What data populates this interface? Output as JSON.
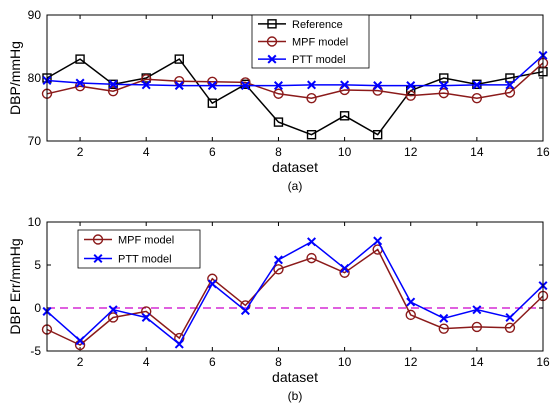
{
  "chart_data": [
    {
      "type": "line",
      "caption": "(a)",
      "xlabel": "dataset",
      "ylabel": "DBP/mmHg",
      "xlim": [
        1,
        16
      ],
      "ylim": [
        70,
        90
      ],
      "xticks": [
        2,
        4,
        6,
        8,
        10,
        12,
        14,
        16
      ],
      "yticks": [
        70,
        80,
        90
      ],
      "grid": false,
      "legend_position": "top-right",
      "x": [
        1,
        2,
        3,
        4,
        5,
        6,
        7,
        8,
        9,
        10,
        11,
        12,
        13,
        14,
        15,
        16
      ],
      "series": [
        {
          "name": "Reference",
          "color": "#000000",
          "marker": "square",
          "values": [
            80,
            83,
            79,
            80,
            83,
            76,
            79,
            73,
            71,
            74,
            71,
            78,
            80,
            79,
            80,
            81
          ]
        },
        {
          "name": "MPF model",
          "color": "#8b1a1a",
          "marker": "circle",
          "values": [
            77.5,
            78.7,
            77.9,
            79.8,
            79.5,
            79.4,
            79.3,
            77.5,
            76.8,
            78.1,
            78.0,
            77.2,
            77.6,
            76.8,
            77.7,
            82.4
          ]
        },
        {
          "name": "PTT model",
          "color": "#0000ff",
          "marker": "x",
          "values": [
            79.6,
            79.2,
            79.0,
            78.9,
            78.8,
            78.8,
            78.8,
            78.8,
            78.9,
            78.9,
            78.8,
            78.8,
            78.8,
            78.9,
            78.9,
            83.6
          ]
        }
      ]
    },
    {
      "type": "line",
      "caption": "(b)",
      "xlabel": "dataset",
      "ylabel": "DBP Err/mmHg",
      "xlim": [
        1,
        16
      ],
      "ylim": [
        -5,
        10
      ],
      "xticks": [
        2,
        4,
        6,
        8,
        10,
        12,
        14,
        16
      ],
      "yticks": [
        -5,
        0,
        5,
        10
      ],
      "grid": false,
      "legend_position": "top-left",
      "reference_line": {
        "y": 0,
        "color": "#cc00cc",
        "style": "dashed"
      },
      "x": [
        1,
        2,
        3,
        4,
        5,
        6,
        7,
        8,
        9,
        10,
        11,
        12,
        13,
        14,
        15,
        16
      ],
      "series": [
        {
          "name": "MPF model",
          "color": "#8b1a1a",
          "marker": "circle",
          "values": [
            -2.5,
            -4.3,
            -1.1,
            -0.4,
            -3.5,
            3.4,
            0.3,
            4.5,
            5.8,
            4.1,
            6.8,
            -0.8,
            -2.4,
            -2.2,
            -2.3,
            1.4
          ]
        },
        {
          "name": "PTT  model",
          "color": "#0000ff",
          "marker": "x",
          "values": [
            -0.4,
            -3.8,
            -0.2,
            -1.1,
            -4.2,
            2.8,
            -0.3,
            5.6,
            7.7,
            4.6,
            7.8,
            0.7,
            -1.2,
            -0.2,
            -1.1,
            2.6
          ]
        }
      ]
    }
  ]
}
